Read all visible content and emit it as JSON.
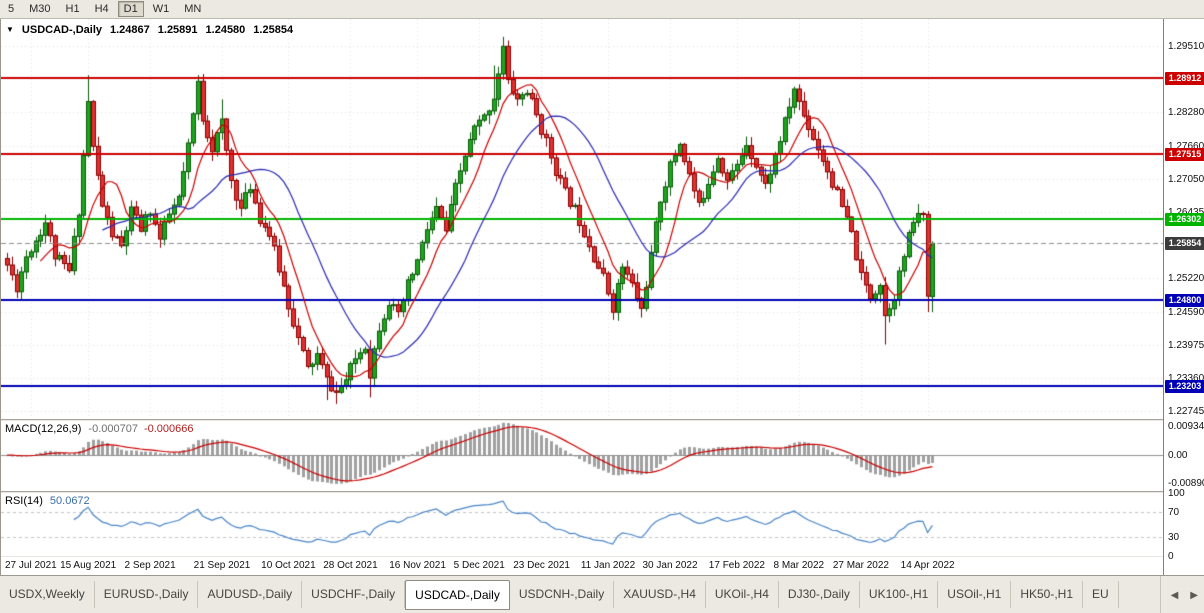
{
  "toolbar": {
    "timeframes": [
      {
        "label": "5",
        "active": false
      },
      {
        "label": "M30",
        "active": false
      },
      {
        "label": "H1",
        "active": false
      },
      {
        "label": "H4",
        "active": false
      },
      {
        "label": "D1",
        "active": true
      },
      {
        "label": "W1",
        "active": false
      },
      {
        "label": "MN",
        "active": false
      }
    ]
  },
  "chart_header": {
    "symbol": "USDCAD-,Daily",
    "open": "1.24867",
    "high": "1.25891",
    "low": "1.24580",
    "close": "1.25854"
  },
  "macd_panel": {
    "label": "MACD(12,26,9)",
    "value_main": "-0.000707",
    "value_signal": "-0.000666",
    "axis": [
      {
        "v": 0.00934,
        "text": "0.00934"
      },
      {
        "v": 0,
        "text": "0.00"
      },
      {
        "v": -0.0089,
        "text": "-0.00890"
      }
    ]
  },
  "rsi_panel": {
    "label": "RSI(14)",
    "value": "50.0672",
    "axis": [
      {
        "v": 100,
        "text": "100"
      },
      {
        "v": 70,
        "text": "70"
      },
      {
        "v": 30,
        "text": "30"
      },
      {
        "v": 0,
        "text": "0"
      }
    ]
  },
  "tabs": {
    "items": [
      "USDX,Weekly",
      "EURUSD-,Daily",
      "AUDUSD-,Daily",
      "USDCHF-,Daily",
      "USDCAD-,Daily",
      "USDCNH-,Daily",
      "XAUUSD-,H4",
      "UKOil-,H4",
      "DJ30-,Daily",
      "UK100-,H1",
      "USOil-,H1",
      "HK50-,H1",
      "EU"
    ],
    "active_index": 4,
    "left_arrow": "◀",
    "right_arrow": "▶"
  },
  "chart_data": {
    "type": "candlestick",
    "title": "USDCAD-,Daily",
    "n_bars": 195,
    "price_min": 1.226,
    "price_max": 1.3001,
    "y_ticks": [
      {
        "price": 1.2951,
        "text": "1.29510"
      },
      {
        "price": 1.2828,
        "text": "1.28280"
      },
      {
        "price": 1.2766,
        "text": "1.27660"
      },
      {
        "price": 1.2705,
        "text": "1.27050"
      },
      {
        "price": 1.26435,
        "text": "1.26435"
      },
      {
        "price": 1.2522,
        "text": "1.25220"
      },
      {
        "price": 1.2459,
        "text": "1.24590"
      },
      {
        "price": 1.23975,
        "text": "1.23975"
      },
      {
        "price": 1.2336,
        "text": "1.23360"
      },
      {
        "price": 1.22745,
        "text": "1.22745"
      }
    ],
    "levels": [
      {
        "price": 1.28912,
        "text": "1.28912",
        "color": "#CC0000"
      },
      {
        "price": 1.27515,
        "text": "1.27515",
        "color": "#CC0000"
      },
      {
        "price": 1.26302,
        "text": "1.26302",
        "color": "#00B400"
      },
      {
        "price": 1.248,
        "text": "1.24800",
        "color": "#0000B4"
      },
      {
        "price": 1.23203,
        "text": "1.23203",
        "color": "#0000B4"
      }
    ],
    "current_price": {
      "price": 1.25854,
      "text": "1.25854",
      "color": "#3C3C3C"
    },
    "x_labels": [
      {
        "bar": 5,
        "text": "27 Jul 2021"
      },
      {
        "bar": 17,
        "text": "15 Aug 2021"
      },
      {
        "bar": 30,
        "text": "2 Sep 2021"
      },
      {
        "bar": 45,
        "text": "21 Sep 2021"
      },
      {
        "bar": 59,
        "text": "10 Oct 2021"
      },
      {
        "bar": 72,
        "text": "28 Oct 2021"
      },
      {
        "bar": 86,
        "text": "16 Nov 2021"
      },
      {
        "bar": 99,
        "text": "5 Dec 2021"
      },
      {
        "bar": 112,
        "text": "23 Dec 2021"
      },
      {
        "bar": 126,
        "text": "11 Jan 2022"
      },
      {
        "bar": 139,
        "text": "30 Jan 2022"
      },
      {
        "bar": 153,
        "text": "17 Feb 2022"
      },
      {
        "bar": 166,
        "text": "8 Mar 2022"
      },
      {
        "bar": 179,
        "text": "27 Mar 2022"
      },
      {
        "bar": 193,
        "text": "14 Apr 2022"
      }
    ],
    "anchors": [
      [
        0,
        1.2545
      ],
      [
        2,
        1.2505
      ],
      [
        4,
        1.2562
      ],
      [
        6,
        1.2592
      ],
      [
        8,
        1.2625
      ],
      [
        10,
        1.2562
      ],
      [
        13,
        1.2533
      ],
      [
        15,
        1.2648
      ],
      [
        17,
        1.2848
      ],
      [
        18,
        1.2762
      ],
      [
        20,
        1.2655
      ],
      [
        22,
        1.2602
      ],
      [
        24,
        1.2578
      ],
      [
        26,
        1.2645
      ],
      [
        28,
        1.2612
      ],
      [
        30,
        1.2648
      ],
      [
        32,
        1.2592
      ],
      [
        34,
        1.2638
      ],
      [
        36,
        1.2668
      ],
      [
        38,
        1.2762
      ],
      [
        40,
        1.2882
      ],
      [
        41,
        1.2818
      ],
      [
        43,
        1.2762
      ],
      [
        45,
        1.2808
      ],
      [
        47,
        1.2702
      ],
      [
        49,
        1.2648
      ],
      [
        51,
        1.2692
      ],
      [
        53,
        1.2632
      ],
      [
        55,
        1.2602
      ],
      [
        57,
        1.2538
      ],
      [
        59,
        1.2472
      ],
      [
        61,
        1.2408
      ],
      [
        63,
        1.2352
      ],
      [
        65,
        1.2378
      ],
      [
        67,
        1.2332
      ],
      [
        69,
        1.2308
      ],
      [
        71,
        1.2332
      ],
      [
        73,
        1.2372
      ],
      [
        75,
        1.2398
      ],
      [
        76,
        1.2345
      ],
      [
        78,
        1.2432
      ],
      [
        80,
        1.2478
      ],
      [
        82,
        1.2448
      ],
      [
        84,
        1.2508
      ],
      [
        86,
        1.2552
      ],
      [
        88,
        1.2612
      ],
      [
        90,
        1.2648
      ],
      [
        92,
        1.2608
      ],
      [
        94,
        1.2688
      ],
      [
        96,
        1.2748
      ],
      [
        98,
        1.2798
      ],
      [
        100,
        1.2818
      ],
      [
        102,
        1.2858
      ],
      [
        104,
        1.2948
      ],
      [
        105,
        1.2882
      ],
      [
        107,
        1.2852
      ],
      [
        109,
        1.2868
      ],
      [
        111,
        1.2822
      ],
      [
        113,
        1.2772
      ],
      [
        115,
        1.2722
      ],
      [
        117,
        1.2678
      ],
      [
        119,
        1.2648
      ],
      [
        121,
        1.2608
      ],
      [
        123,
        1.2562
      ],
      [
        125,
        1.2522
      ],
      [
        127,
        1.2468
      ],
      [
        129,
        1.2542
      ],
      [
        131,
        1.2508
      ],
      [
        133,
        1.2462
      ],
      [
        135,
        1.2562
      ],
      [
        137,
        1.2668
      ],
      [
        139,
        1.2728
      ],
      [
        141,
        1.2772
      ],
      [
        143,
        1.2712
      ],
      [
        145,
        1.2652
      ],
      [
        147,
        1.2702
      ],
      [
        149,
        1.2748
      ],
      [
        151,
        1.2702
      ],
      [
        153,
        1.2728
      ],
      [
        155,
        1.2772
      ],
      [
        157,
        1.2732
      ],
      [
        159,
        1.2692
      ],
      [
        161,
        1.2748
      ],
      [
        163,
        1.2808
      ],
      [
        165,
        1.2872
      ],
      [
        167,
        1.2822
      ],
      [
        169,
        1.2782
      ],
      [
        171,
        1.2742
      ],
      [
        173,
        1.2698
      ],
      [
        175,
        1.2652
      ],
      [
        177,
        1.2602
      ],
      [
        179,
        1.2522
      ],
      [
        181,
        1.2488
      ],
      [
        183,
        1.2512
      ],
      [
        184,
        1.2452
      ],
      [
        186,
        1.2492
      ],
      [
        188,
        1.2562
      ],
      [
        190,
        1.2628
      ],
      [
        192,
        1.2642
      ],
      [
        193,
        1.2489
      ],
      [
        194,
        1.25854
      ]
    ],
    "spikes": [
      [
        17,
        "h",
        1.2897
      ],
      [
        40,
        "h",
        1.2897
      ],
      [
        45,
        "h",
        1.2852
      ],
      [
        102,
        "h",
        1.2915
      ],
      [
        104,
        "h",
        1.2964
      ],
      [
        67,
        "l",
        1.2295
      ],
      [
        69,
        "l",
        1.2288
      ],
      [
        76,
        "l",
        1.23
      ],
      [
        127,
        "l",
        1.2448
      ],
      [
        133,
        "l",
        1.2448
      ],
      [
        184,
        "l",
        1.2398
      ],
      [
        193,
        "l",
        1.2458
      ]
    ],
    "last_bar": [
      1.24867,
      1.25891,
      1.2458,
      1.25854
    ],
    "ma_fast_period": 8,
    "ma_slow_period": 21,
    "macd_range": [
      -0.01154,
      0.01096
    ],
    "rsi_range": [
      0,
      100
    ],
    "rsi_levels": [
      70,
      30
    ],
    "colors": {
      "up": "#1FA41F",
      "up_dark": "#0A5A0A",
      "down": "#E03030",
      "down_dark": "#8B0000",
      "ma_fast": "#CC0000",
      "ma_slow": "#2B2BB4",
      "macd_hist": "#A0A0A0",
      "macd_signal": "#CC0000",
      "macd_zero": "#909090",
      "rsi": "#4A86C8",
      "rsi_level": "#C4C4CE",
      "grid": "#E3E3E3",
      "current_line": "#909090"
    }
  }
}
